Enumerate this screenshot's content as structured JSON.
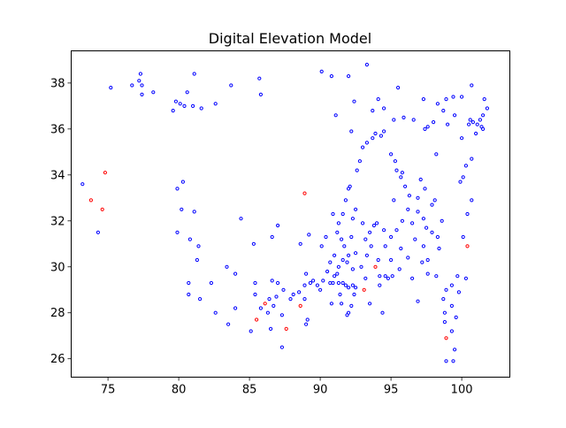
{
  "colors": {
    "blue_series": "#0000ff",
    "red_series": "#ff0000",
    "axes": "#000000",
    "background": "#ffffff"
  },
  "chart_data": {
    "type": "scatter",
    "title": "Digital Elevation Model",
    "xlabel": "",
    "ylabel": "",
    "xlim": [
      72.4,
      103.4
    ],
    "ylim": [
      25.2,
      39.4
    ],
    "xticks": [
      75,
      80,
      85,
      90,
      95,
      100
    ],
    "yticks": [
      26,
      28,
      30,
      32,
      34,
      36,
      38
    ],
    "grid": false,
    "legend": "none",
    "series": [
      {
        "color": "#0000ff",
        "marker": "hollow-circle",
        "points": [
          [
            73.2,
            33.6
          ],
          [
            74.3,
            31.5
          ],
          [
            75.2,
            37.8
          ],
          [
            76.7,
            37.9
          ],
          [
            77.2,
            38.1
          ],
          [
            77.3,
            38.4
          ],
          [
            77.4,
            37.9
          ],
          [
            77.4,
            37.5
          ],
          [
            78.2,
            37.6
          ],
          [
            79.6,
            36.8
          ],
          [
            79.8,
            37.2
          ],
          [
            80.1,
            37.1
          ],
          [
            80.4,
            37.0
          ],
          [
            80.6,
            37.6
          ],
          [
            81.0,
            37.0
          ],
          [
            81.1,
            38.4
          ],
          [
            81.6,
            36.9
          ],
          [
            82.6,
            37.1
          ],
          [
            83.7,
            37.9
          ],
          [
            85.7,
            38.2
          ],
          [
            85.8,
            37.5
          ],
          [
            79.9,
            33.4
          ],
          [
            80.3,
            33.7
          ],
          [
            80.2,
            32.5
          ],
          [
            79.9,
            31.5
          ],
          [
            80.8,
            31.2
          ],
          [
            81.1,
            32.4
          ],
          [
            81.3,
            30.3
          ],
          [
            81.4,
            30.9
          ],
          [
            80.7,
            29.3
          ],
          [
            80.7,
            28.8
          ],
          [
            81.5,
            28.6
          ],
          [
            82.3,
            29.3
          ],
          [
            82.6,
            28.0
          ],
          [
            83.4,
            30.0
          ],
          [
            84.0,
            29.7
          ],
          [
            84.0,
            28.2
          ],
          [
            83.5,
            27.5
          ],
          [
            84.4,
            32.1
          ],
          [
            85.1,
            27.2
          ],
          [
            85.3,
            31.0
          ],
          [
            85.4,
            29.3
          ],
          [
            85.4,
            28.8
          ],
          [
            85.8,
            28.2
          ],
          [
            86.3,
            28.0
          ],
          [
            86.5,
            27.3
          ],
          [
            86.4,
            28.6
          ],
          [
            86.7,
            28.3
          ],
          [
            86.9,
            28.7
          ],
          [
            86.6,
            29.4
          ],
          [
            87.0,
            29.3
          ],
          [
            87.3,
            27.9
          ],
          [
            87.3,
            26.5
          ],
          [
            87.4,
            29.0
          ],
          [
            87.9,
            28.6
          ],
          [
            88.1,
            28.8
          ],
          [
            88.5,
            28.9
          ],
          [
            88.9,
            28.6
          ],
          [
            88.9,
            29.2
          ],
          [
            89.0,
            29.7
          ],
          [
            89.3,
            29.3
          ],
          [
            89.0,
            27.5
          ],
          [
            89.1,
            27.7
          ],
          [
            86.6,
            31.3
          ],
          [
            87.0,
            31.8
          ],
          [
            89.2,
            31.4
          ],
          [
            88.6,
            31.0
          ],
          [
            89.5,
            29.4
          ],
          [
            89.8,
            29.2
          ],
          [
            90.0,
            29.0
          ],
          [
            90.2,
            29.4
          ],
          [
            90.5,
            29.8
          ],
          [
            90.7,
            29.3
          ],
          [
            90.8,
            28.4
          ],
          [
            90.9,
            29.3
          ],
          [
            91.0,
            29.6
          ],
          [
            91.2,
            29.7
          ],
          [
            91.3,
            29.3
          ],
          [
            91.4,
            28.8
          ],
          [
            91.5,
            28.4
          ],
          [
            91.6,
            29.3
          ],
          [
            91.8,
            29.2
          ],
          [
            92.0,
            29.1
          ],
          [
            92.2,
            28.3
          ],
          [
            92.3,
            29.2
          ],
          [
            92.4,
            28.8
          ],
          [
            92.5,
            29.1
          ],
          [
            91.9,
            27.9
          ],
          [
            92.0,
            28.0
          ],
          [
            90.1,
            30.9
          ],
          [
            90.7,
            30.2
          ],
          [
            91.0,
            30.5
          ],
          [
            91.2,
            31.5
          ],
          [
            91.5,
            31.2
          ],
          [
            91.3,
            30.0
          ],
          [
            91.6,
            30.3
          ],
          [
            91.7,
            30.9
          ],
          [
            91.9,
            30.2
          ],
          [
            92.0,
            30.5
          ],
          [
            92.2,
            31.3
          ],
          [
            92.3,
            29.9
          ],
          [
            92.5,
            30.6
          ],
          [
            92.9,
            30.0
          ],
          [
            93.2,
            29.5
          ],
          [
            93.3,
            30.5
          ],
          [
            93.6,
            30.9
          ],
          [
            94.1,
            30.3
          ],
          [
            94.2,
            29.6
          ],
          [
            94.2,
            29.2
          ],
          [
            94.6,
            29.6
          ],
          [
            94.8,
            29.5
          ],
          [
            93.5,
            28.4
          ],
          [
            94.4,
            28.0
          ],
          [
            94.6,
            30.9
          ],
          [
            95.0,
            30.3
          ],
          [
            95.1,
            29.6
          ],
          [
            95.6,
            29.9
          ],
          [
            95.7,
            30.8
          ],
          [
            96.2,
            30.4
          ],
          [
            96.5,
            29.5
          ],
          [
            96.7,
            31.2
          ],
          [
            96.9,
            28.5
          ],
          [
            97.2,
            30.2
          ],
          [
            97.3,
            30.9
          ],
          [
            97.6,
            29.7
          ],
          [
            97.6,
            30.3
          ],
          [
            97.9,
            31.5
          ],
          [
            98.2,
            29.6
          ],
          [
            98.3,
            31.3
          ],
          [
            98.4,
            30.8
          ],
          [
            98.7,
            28.6
          ],
          [
            98.8,
            28.0
          ],
          [
            98.9,
            29.0
          ],
          [
            99.3,
            29.2
          ],
          [
            99.8,
            28.9
          ],
          [
            99.3,
            28.3
          ],
          [
            99.3,
            27.2
          ],
          [
            99.5,
            26.4
          ],
          [
            99.6,
            27.8
          ],
          [
            98.9,
            25.9
          ],
          [
            99.4,
            25.9
          ],
          [
            98.8,
            27.6
          ],
          [
            99.7,
            29.6
          ],
          [
            100.3,
            29.5
          ],
          [
            90.4,
            31.3
          ],
          [
            90.9,
            32.3
          ],
          [
            91.3,
            31.9
          ],
          [
            91.6,
            32.3
          ],
          [
            91.8,
            32.9
          ],
          [
            92.0,
            33.4
          ],
          [
            92.1,
            33.5
          ],
          [
            92.3,
            32.1
          ],
          [
            92.5,
            32.5
          ],
          [
            93.0,
            31.9
          ],
          [
            93.2,
            31.2
          ],
          [
            93.5,
            31.5
          ],
          [
            93.8,
            31.8
          ],
          [
            94.0,
            31.9
          ],
          [
            94.5,
            31.6
          ],
          [
            95.0,
            31.3
          ],
          [
            95.2,
            32.9
          ],
          [
            95.4,
            31.6
          ],
          [
            95.8,
            32.0
          ],
          [
            96.2,
            32.5
          ],
          [
            96.5,
            31.9
          ],
          [
            96.9,
            32.4
          ],
          [
            97.3,
            32.1
          ],
          [
            97.5,
            31.7
          ],
          [
            97.9,
            32.7
          ],
          [
            98.1,
            32.9
          ],
          [
            98.6,
            32.0
          ],
          [
            100.1,
            31.3
          ],
          [
            100.4,
            32.3
          ],
          [
            100.7,
            32.9
          ],
          [
            100.1,
            33.9
          ],
          [
            100.3,
            34.4
          ],
          [
            100.7,
            34.7
          ],
          [
            99.9,
            33.7
          ],
          [
            100.0,
            35.6
          ],
          [
            101.0,
            35.8
          ],
          [
            92.6,
            34.2
          ],
          [
            92.8,
            34.6
          ],
          [
            93.0,
            35.2
          ],
          [
            93.3,
            35.4
          ],
          [
            93.7,
            35.6
          ],
          [
            93.9,
            35.8
          ],
          [
            94.3,
            35.7
          ],
          [
            94.5,
            35.9
          ],
          [
            95.0,
            34.9
          ],
          [
            95.3,
            34.6
          ],
          [
            95.4,
            34.2
          ],
          [
            95.7,
            33.9
          ],
          [
            95.8,
            34.1
          ],
          [
            96.0,
            33.5
          ],
          [
            96.3,
            33.1
          ],
          [
            96.9,
            33.0
          ],
          [
            97.1,
            33.8
          ],
          [
            97.4,
            33.4
          ],
          [
            98.2,
            34.9
          ],
          [
            93.7,
            36.8
          ],
          [
            92.2,
            35.9
          ],
          [
            92.4,
            37.2
          ],
          [
            94.1,
            37.3
          ],
          [
            94.5,
            36.9
          ],
          [
            95.2,
            36.4
          ],
          [
            95.5,
            37.8
          ],
          [
            95.9,
            36.5
          ],
          [
            96.6,
            36.4
          ],
          [
            97.3,
            37.3
          ],
          [
            97.4,
            36.0
          ],
          [
            97.6,
            36.1
          ],
          [
            98.0,
            36.3
          ],
          [
            98.3,
            37.1
          ],
          [
            98.7,
            36.8
          ],
          [
            98.9,
            37.3
          ],
          [
            99.4,
            37.4
          ],
          [
            99.0,
            36.2
          ],
          [
            99.5,
            36.6
          ],
          [
            100.0,
            37.4
          ],
          [
            100.5,
            36.2
          ],
          [
            100.6,
            36.4
          ],
          [
            100.8,
            36.3
          ],
          [
            101.1,
            36.2
          ],
          [
            100.7,
            37.9
          ],
          [
            101.6,
            37.3
          ],
          [
            101.3,
            36.4
          ],
          [
            101.5,
            36.6
          ],
          [
            101.5,
            36.0
          ],
          [
            101.4,
            36.1
          ],
          [
            101.8,
            36.9
          ],
          [
            90.1,
            38.5
          ],
          [
            90.8,
            38.3
          ],
          [
            92.0,
            38.3
          ],
          [
            93.3,
            38.8
          ],
          [
            91.1,
            36.6
          ]
        ]
      },
      {
        "color": "#ff0000",
        "marker": "hollow-circle",
        "points": [
          [
            73.8,
            32.9
          ],
          [
            74.6,
            32.5
          ],
          [
            74.8,
            34.1
          ],
          [
            85.5,
            27.7
          ],
          [
            86.1,
            28.4
          ],
          [
            87.6,
            27.3
          ],
          [
            88.6,
            28.3
          ],
          [
            88.9,
            33.2
          ],
          [
            93.1,
            29.0
          ],
          [
            93.9,
            30.0
          ],
          [
            98.9,
            26.9
          ],
          [
            100.4,
            30.9
          ]
        ]
      }
    ]
  }
}
